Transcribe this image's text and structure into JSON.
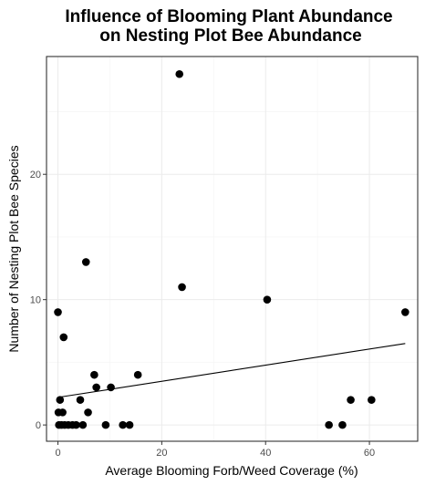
{
  "chart_data": {
    "type": "scatter",
    "title_line1": "Influence of Blooming Plant Abundance",
    "title_line2": "on Nesting Plot Bee Abundance",
    "xlabel": "Average Blooming Forb/Weed Coverage (%)",
    "ylabel": "Number of Nesting Plot Bee Species",
    "xlim": [
      -2.2,
      69.3
    ],
    "ylim": [
      -1.3,
      29.4
    ],
    "x_ticks": [
      0,
      20,
      40,
      60
    ],
    "y_ticks": [
      0,
      10,
      20
    ],
    "grid": true,
    "points": [
      {
        "x": 0.0,
        "y": 9
      },
      {
        "x": 0.1,
        "y": 1
      },
      {
        "x": 0.2,
        "y": 0
      },
      {
        "x": 0.4,
        "y": 2
      },
      {
        "x": 0.7,
        "y": 0
      },
      {
        "x": 0.9,
        "y": 1
      },
      {
        "x": 1.1,
        "y": 7
      },
      {
        "x": 1.3,
        "y": 0
      },
      {
        "x": 2.0,
        "y": 0
      },
      {
        "x": 2.8,
        "y": 0
      },
      {
        "x": 3.5,
        "y": 0
      },
      {
        "x": 4.3,
        "y": 2
      },
      {
        "x": 4.8,
        "y": 0
      },
      {
        "x": 5.4,
        "y": 13
      },
      {
        "x": 5.8,
        "y": 1
      },
      {
        "x": 7.0,
        "y": 4
      },
      {
        "x": 7.4,
        "y": 3
      },
      {
        "x": 9.2,
        "y": 0
      },
      {
        "x": 10.2,
        "y": 3
      },
      {
        "x": 12.5,
        "y": 0
      },
      {
        "x": 13.8,
        "y": 0
      },
      {
        "x": 15.4,
        "y": 4
      },
      {
        "x": 23.4,
        "y": 28
      },
      {
        "x": 23.9,
        "y": 11
      },
      {
        "x": 40.3,
        "y": 10
      },
      {
        "x": 52.2,
        "y": 0
      },
      {
        "x": 54.8,
        "y": 0
      },
      {
        "x": 56.4,
        "y": 2
      },
      {
        "x": 60.4,
        "y": 2
      },
      {
        "x": 66.9,
        "y": 9
      }
    ],
    "trend_line": {
      "x": [
        0,
        66.9
      ],
      "y": [
        2.2,
        6.5
      ]
    }
  }
}
